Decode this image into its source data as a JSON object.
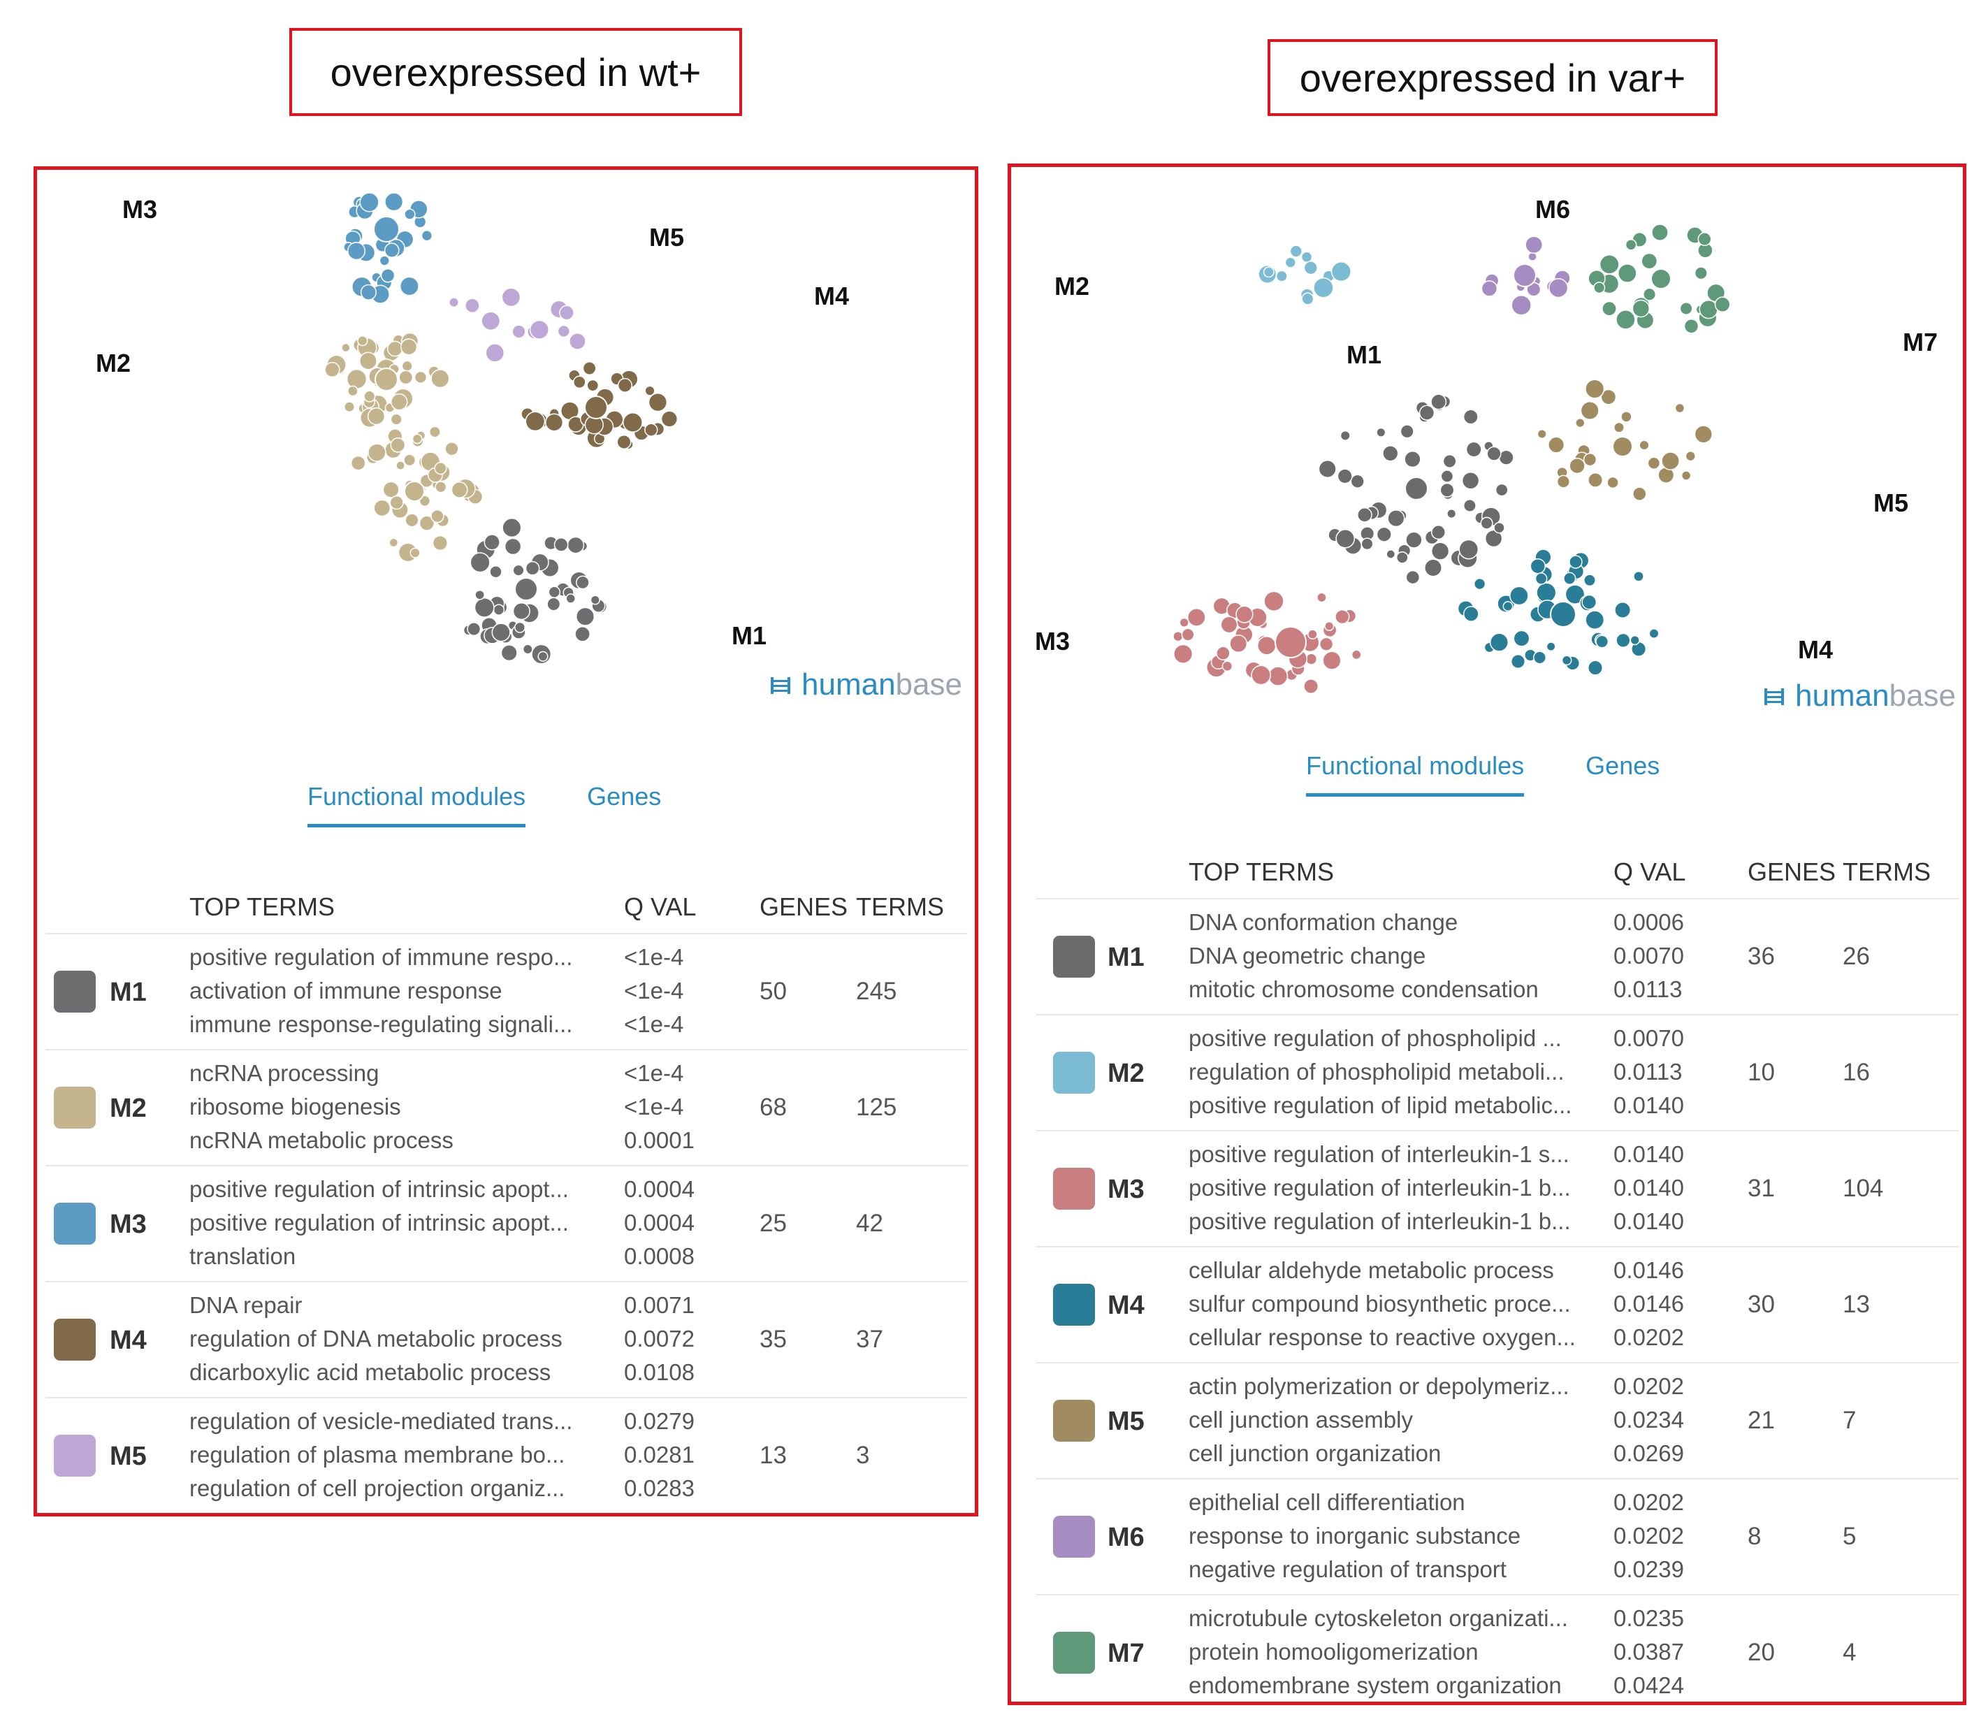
{
  "left": {
    "title": "overexpressed in wt+",
    "network_labels": [
      "M3",
      "M5",
      "M4",
      "M2",
      "M1"
    ],
    "brand": {
      "part1": "human",
      "part2": "base"
    },
    "tabs": [
      "Functional modules",
      "Genes"
    ],
    "columns": {
      "top_terms": "TOP TERMS",
      "q_val": "Q VAL",
      "genes": "GENES",
      "terms": "TERMS"
    },
    "modules": [
      {
        "id": "M1",
        "color": "#6d6e70",
        "genes": "50",
        "terms_count": "245",
        "terms": [
          "positive regulation of immune respo...",
          "activation of immune response",
          "immune response-regulating signali..."
        ],
        "qvals": [
          "<1e-4",
          "<1e-4",
          "<1e-4"
        ]
      },
      {
        "id": "M2",
        "color": "#c4b48e",
        "genes": "68",
        "terms_count": "125",
        "terms": [
          "ncRNA processing",
          "ribosome biogenesis",
          "ncRNA metabolic process"
        ],
        "qvals": [
          "<1e-4",
          "<1e-4",
          "0.0001"
        ]
      },
      {
        "id": "M3",
        "color": "#5b9bc4",
        "genes": "25",
        "terms_count": "42",
        "terms": [
          "positive regulation of intrinsic apopt...",
          "positive regulation of intrinsic apopt...",
          "translation"
        ],
        "qvals": [
          "0.0004",
          "0.0004",
          "0.0008"
        ]
      },
      {
        "id": "M4",
        "color": "#806a4a",
        "genes": "35",
        "terms_count": "37",
        "terms": [
          "DNA repair",
          "regulation of DNA metabolic process",
          "dicarboxylic acid metabolic process"
        ],
        "qvals": [
          "0.0071",
          "0.0072",
          "0.0108"
        ]
      },
      {
        "id": "M5",
        "color": "#bda7d6",
        "genes": "13",
        "terms_count": "3",
        "terms": [
          "regulation of vesicle-mediated trans...",
          "regulation of plasma membrane bo...",
          "regulation of cell projection organiz..."
        ],
        "qvals": [
          "0.0279",
          "0.0281",
          "0.0283"
        ]
      }
    ]
  },
  "right": {
    "title": "overexpressed in var+",
    "network_labels": [
      "M6",
      "M2",
      "M7",
      "M1",
      "M5",
      "M3",
      "M4"
    ],
    "brand": {
      "part1": "human",
      "part2": "base"
    },
    "tabs": [
      "Functional modules",
      "Genes"
    ],
    "columns": {
      "top_terms": "TOP TERMS",
      "q_val": "Q VAL",
      "genes": "GENES",
      "terms": "TERMS"
    },
    "modules": [
      {
        "id": "M1",
        "color": "#6b6b6b",
        "genes": "36",
        "terms_count": "26",
        "terms": [
          "DNA conformation change",
          "DNA geometric change",
          "mitotic chromosome condensation"
        ],
        "qvals": [
          "0.0006",
          "0.0070",
          "0.0113"
        ]
      },
      {
        "id": "M2",
        "color": "#7bbcd4",
        "genes": "10",
        "terms_count": "16",
        "terms": [
          "positive regulation of phospholipid ...",
          "regulation of phospholipid metaboli...",
          "positive regulation of lipid metabolic..."
        ],
        "qvals": [
          "0.0070",
          "0.0113",
          "0.0140"
        ]
      },
      {
        "id": "M3",
        "color": "#c97f7f",
        "genes": "31",
        "terms_count": "104",
        "terms": [
          "positive regulation of interleukin-1 s...",
          "positive regulation of interleukin-1 b...",
          "positive regulation of interleukin-1 b..."
        ],
        "qvals": [
          "0.0140",
          "0.0140",
          "0.0140"
        ]
      },
      {
        "id": "M4",
        "color": "#2a7d96",
        "genes": "30",
        "terms_count": "13",
        "terms": [
          "cellular aldehyde metabolic process",
          "sulfur compound biosynthetic proce...",
          "cellular response to reactive oxygen..."
        ],
        "qvals": [
          "0.0146",
          "0.0146",
          "0.0202"
        ]
      },
      {
        "id": "M5",
        "color": "#a08c60",
        "genes": "21",
        "terms_count": "7",
        "terms": [
          "actin polymerization or depolymeriz...",
          "cell junction assembly",
          "cell junction organization"
        ],
        "qvals": [
          "0.0202",
          "0.0234",
          "0.0269"
        ]
      },
      {
        "id": "M6",
        "color": "#a58cc2",
        "genes": "8",
        "terms_count": "5",
        "terms": [
          "epithelial cell differentiation",
          "response to inorganic substance",
          "negative regulation of transport"
        ],
        "qvals": [
          "0.0202",
          "0.0202",
          "0.0239"
        ]
      },
      {
        "id": "M7",
        "color": "#5e9a7a",
        "genes": "20",
        "terms_count": "4",
        "terms": [
          "microtubule cytoskeleton organizati...",
          "protein homooligomerization",
          "endomembrane system organization"
        ],
        "qvals": [
          "0.0235",
          "0.0387",
          "0.0424"
        ]
      }
    ]
  }
}
